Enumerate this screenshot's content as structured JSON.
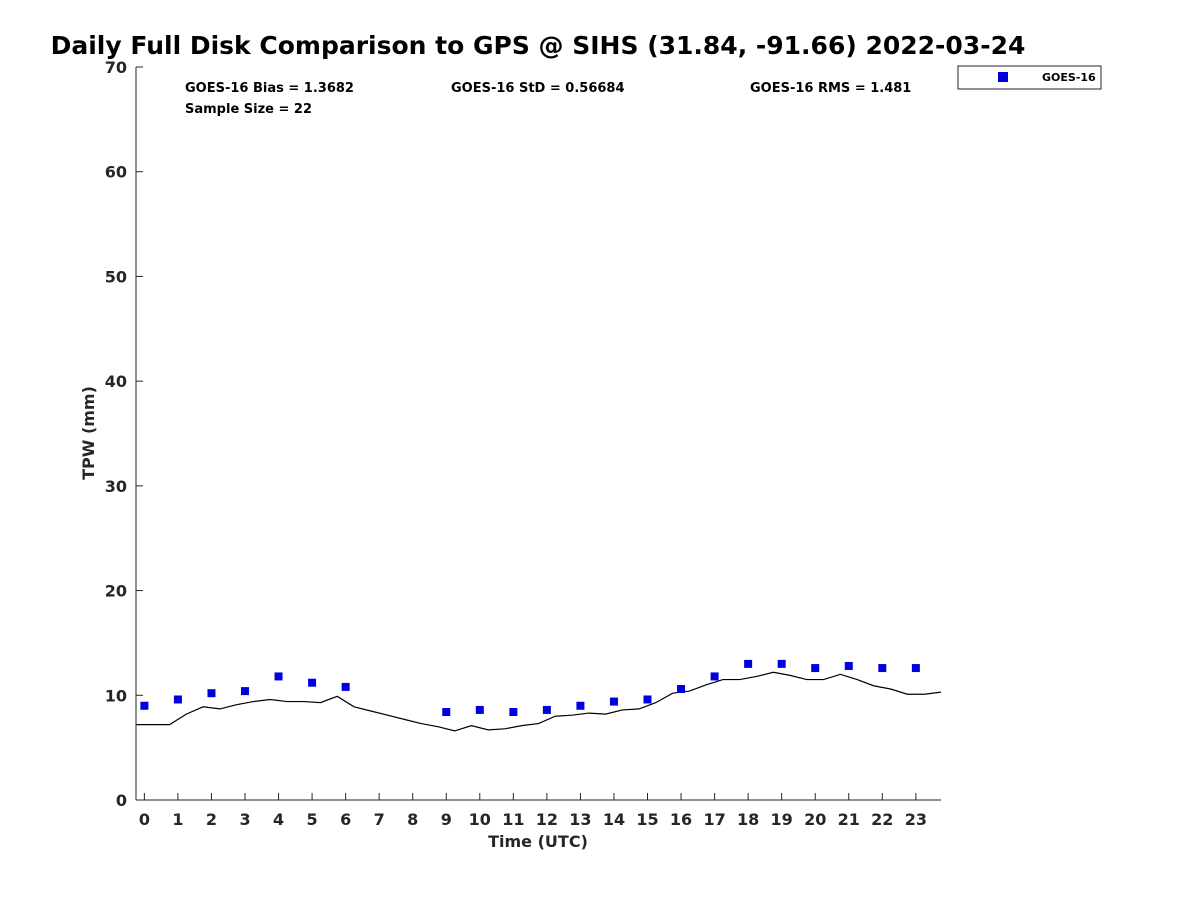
{
  "chart_data": {
    "type": "scatter",
    "title": "Daily Full Disk Comparison to GPS @ SIHS (31.84, -91.66) 2022-03-24",
    "xlabel": "Time (UTC)",
    "ylabel": "TPW (mm)",
    "xlim": [
      -0.25,
      23.75
    ],
    "ylim": [
      0,
      70
    ],
    "x_ticks": [
      0,
      1,
      2,
      3,
      4,
      5,
      6,
      7,
      8,
      9,
      10,
      11,
      12,
      13,
      14,
      15,
      16,
      17,
      18,
      19,
      20,
      21,
      22,
      23
    ],
    "y_ticks": [
      0,
      10,
      20,
      30,
      40,
      50,
      60,
      70
    ],
    "grid": false,
    "legend_position": "top-right, outside plot",
    "stats": {
      "bias": "GOES-16 Bias = 1.3682",
      "std": "GOES-16 StD = 0.56684",
      "rms": "GOES-16 RMS = 1.481",
      "sample": "Sample Size = 22"
    },
    "series": [
      {
        "name": "GOES-16",
        "kind": "scatter",
        "marker": "square",
        "color": "#0000dd",
        "points": [
          [
            0,
            9.0
          ],
          [
            1,
            9.6
          ],
          [
            2,
            10.2
          ],
          [
            3,
            10.4
          ],
          [
            4,
            11.8
          ],
          [
            5,
            11.2
          ],
          [
            6,
            10.8
          ],
          [
            9,
            8.4
          ],
          [
            10,
            8.6
          ],
          [
            11,
            8.4
          ],
          [
            12,
            8.6
          ],
          [
            13,
            9.0
          ],
          [
            14,
            9.4
          ],
          [
            15,
            9.6
          ],
          [
            16,
            10.6
          ],
          [
            17,
            11.8
          ],
          [
            18,
            13.0
          ],
          [
            19,
            13.0
          ],
          [
            20,
            12.6
          ],
          [
            21,
            12.8
          ],
          [
            22,
            12.6
          ],
          [
            23,
            12.6
          ]
        ]
      },
      {
        "kind": "line",
        "color": "#000000",
        "points": [
          [
            -0.25,
            7.2
          ],
          [
            0.25,
            7.2
          ],
          [
            0.75,
            7.2
          ],
          [
            1.25,
            8.2
          ],
          [
            1.75,
            8.9
          ],
          [
            2.25,
            8.7
          ],
          [
            2.75,
            9.1
          ],
          [
            3.25,
            9.4
          ],
          [
            3.75,
            9.6
          ],
          [
            4.25,
            9.4
          ],
          [
            4.75,
            9.4
          ],
          [
            5.25,
            9.3
          ],
          [
            5.75,
            9.9
          ],
          [
            6.25,
            8.9
          ],
          [
            6.75,
            8.5
          ],
          [
            7.25,
            8.1
          ],
          [
            7.75,
            7.7
          ],
          [
            8.25,
            7.3
          ],
          [
            8.75,
            7.0
          ],
          [
            9.25,
            6.6
          ],
          [
            9.75,
            7.1
          ],
          [
            10.25,
            6.7
          ],
          [
            10.75,
            6.8
          ],
          [
            11.25,
            7.1
          ],
          [
            11.75,
            7.3
          ],
          [
            12.25,
            8.0
          ],
          [
            12.75,
            8.1
          ],
          [
            13.25,
            8.3
          ],
          [
            13.75,
            8.2
          ],
          [
            14.25,
            8.6
          ],
          [
            14.75,
            8.7
          ],
          [
            15.25,
            9.3
          ],
          [
            15.75,
            10.2
          ],
          [
            16.25,
            10.4
          ],
          [
            16.75,
            11.0
          ],
          [
            17.25,
            11.5
          ],
          [
            17.75,
            11.5
          ],
          [
            18.25,
            11.8
          ],
          [
            18.75,
            12.2
          ],
          [
            19.25,
            11.9
          ],
          [
            19.75,
            11.5
          ],
          [
            20.25,
            11.5
          ],
          [
            20.75,
            12.0
          ],
          [
            21.25,
            11.5
          ],
          [
            21.75,
            10.9
          ],
          [
            22.25,
            10.6
          ],
          [
            22.75,
            10.1
          ],
          [
            23.25,
            10.1
          ],
          [
            23.75,
            10.3
          ]
        ]
      }
    ]
  }
}
